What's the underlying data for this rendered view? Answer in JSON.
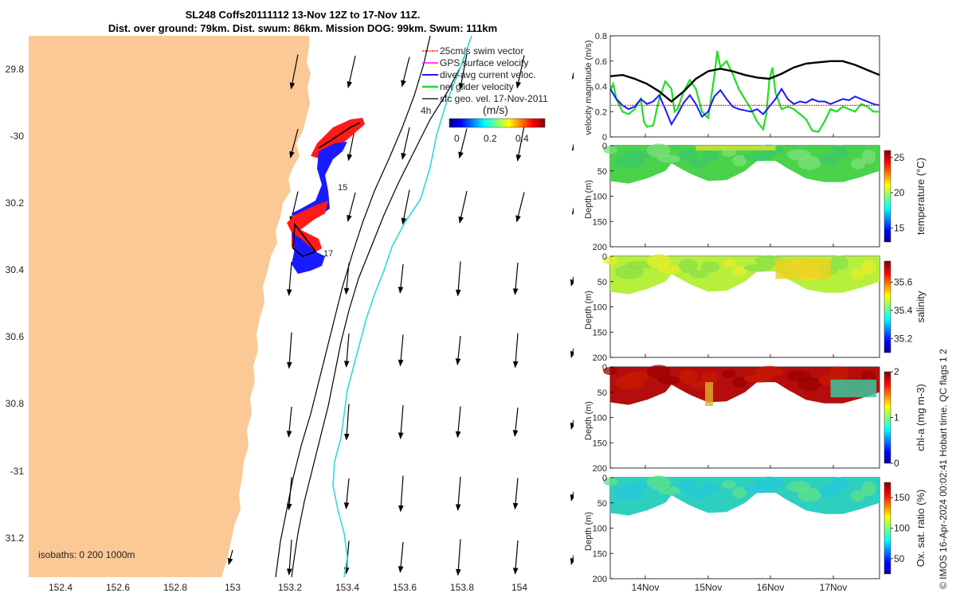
{
  "title": {
    "line1": "SL248 Coffs20111112 13-Nov 12Z to 17-Nov 11Z.",
    "line2": "Dist. over ground: 79km. Dist. swum: 86km. Mission DOG: 99km. Swum: 111km"
  },
  "credit": "© IMOS 16-Apr-2024 00:02:41 Hobart time. QC flags 1  2",
  "colors": {
    "land": "#fbc996",
    "swim_vector": "#ff2020",
    "gps_velocity": "#ff00ff",
    "dive_avg": "#1a1aff",
    "net_glider": "#22dd22",
    "sfc_geo": "#000000",
    "track_cyan": "#35d8d8"
  },
  "map": {
    "lon_ticks": [
      "152.4",
      "152.6",
      "152.8",
      "153",
      "153.2",
      "153.4",
      "153.6",
      "153.8",
      "154"
    ],
    "lat_ticks": [
      "29.8",
      "-30",
      "30.2",
      "30.4",
      "30.6",
      "30.8",
      "-31",
      "31.2"
    ],
    "isobath_note": "isobaths: 0   200  1000m",
    "day_labels": [
      "15",
      "17"
    ],
    "legend": [
      {
        "key": "swim",
        "label": "25cm/s swim vector"
      },
      {
        "key": "gps",
        "label": "GPS surface velocity"
      },
      {
        "key": "dive",
        "label": "dive-avg current veloc."
      },
      {
        "key": "net",
        "label": "net glider velocity"
      },
      {
        "key": "geo",
        "label": "sfc geo. vel. 17-Nov-2011"
      }
    ],
    "legend_scale_label": "4h",
    "colorbar": {
      "title": "(m/s)",
      "ticks": [
        "0",
        "0.2",
        "0.4"
      ],
      "range": [
        -0.1,
        0.5
      ]
    }
  },
  "chart_data": [
    {
      "type": "line",
      "ylabel": "velocity magnitude (m/s)",
      "ylim": [
        0,
        0.8
      ],
      "yticks": [
        "0",
        "0.2",
        "0.4",
        "0.6",
        "0.8"
      ],
      "x_range_days": [
        13.5,
        17.9
      ],
      "series": [
        {
          "key": "black",
          "values": [
            [
              13.5,
              0.48
            ],
            [
              13.7,
              0.49
            ],
            [
              13.9,
              0.46
            ],
            [
              14.1,
              0.42
            ],
            [
              14.3,
              0.36
            ],
            [
              14.5,
              0.28
            ],
            [
              14.7,
              0.36
            ],
            [
              14.9,
              0.46
            ],
            [
              15.1,
              0.52
            ],
            [
              15.3,
              0.54
            ],
            [
              15.5,
              0.52
            ],
            [
              15.7,
              0.49
            ],
            [
              15.9,
              0.47
            ],
            [
              16.1,
              0.46
            ],
            [
              16.3,
              0.5
            ],
            [
              16.5,
              0.55
            ],
            [
              16.7,
              0.58
            ],
            [
              16.9,
              0.59
            ],
            [
              17.1,
              0.6
            ],
            [
              17.3,
              0.6
            ],
            [
              17.5,
              0.57
            ],
            [
              17.7,
              0.53
            ],
            [
              17.9,
              0.49
            ]
          ]
        },
        {
          "key": "blue",
          "values": [
            [
              13.5,
              0.38
            ],
            [
              13.6,
              0.3
            ],
            [
              13.7,
              0.25
            ],
            [
              13.8,
              0.22
            ],
            [
              13.9,
              0.24
            ],
            [
              14.0,
              0.3
            ],
            [
              14.1,
              0.26
            ],
            [
              14.2,
              0.28
            ],
            [
              14.3,
              0.33
            ],
            [
              14.4,
              0.22
            ],
            [
              14.5,
              0.1
            ],
            [
              14.6,
              0.18
            ],
            [
              14.7,
              0.27
            ],
            [
              14.8,
              0.33
            ],
            [
              14.9,
              0.26
            ],
            [
              15.0,
              0.16
            ],
            [
              15.1,
              0.2
            ],
            [
              15.2,
              0.32
            ],
            [
              15.3,
              0.37
            ],
            [
              15.4,
              0.3
            ],
            [
              15.5,
              0.24
            ],
            [
              15.6,
              0.22
            ],
            [
              15.7,
              0.21
            ],
            [
              15.8,
              0.2
            ],
            [
              15.9,
              0.22
            ],
            [
              16.0,
              0.18
            ],
            [
              16.1,
              0.24
            ],
            [
              16.2,
              0.3
            ],
            [
              16.3,
              0.38
            ],
            [
              16.4,
              0.3
            ],
            [
              16.5,
              0.26
            ],
            [
              16.6,
              0.28
            ],
            [
              16.7,
              0.27
            ],
            [
              16.8,
              0.3
            ],
            [
              16.9,
              0.28
            ],
            [
              17.0,
              0.28
            ],
            [
              17.1,
              0.26
            ],
            [
              17.2,
              0.28
            ],
            [
              17.3,
              0.3
            ],
            [
              17.4,
              0.29
            ],
            [
              17.5,
              0.32
            ],
            [
              17.6,
              0.3
            ],
            [
              17.7,
              0.28
            ],
            [
              17.8,
              0.26
            ],
            [
              17.9,
              0.25
            ]
          ]
        },
        {
          "key": "green",
          "values": [
            [
              13.5,
              0.36
            ],
            [
              13.55,
              0.42
            ],
            [
              13.6,
              0.3
            ],
            [
              13.7,
              0.2
            ],
            [
              13.8,
              0.18
            ],
            [
              13.9,
              0.22
            ],
            [
              14.0,
              0.3
            ],
            [
              14.05,
              0.12
            ],
            [
              14.1,
              0.08
            ],
            [
              14.2,
              0.09
            ],
            [
              14.3,
              0.3
            ],
            [
              14.4,
              0.44
            ],
            [
              14.5,
              0.38
            ],
            [
              14.55,
              0.2
            ],
            [
              14.6,
              0.22
            ],
            [
              14.7,
              0.36
            ],
            [
              14.8,
              0.45
            ],
            [
              14.9,
              0.38
            ],
            [
              15.0,
              0.2
            ],
            [
              15.1,
              0.15
            ],
            [
              15.2,
              0.48
            ],
            [
              15.25,
              0.68
            ],
            [
              15.3,
              0.55
            ],
            [
              15.4,
              0.6
            ],
            [
              15.5,
              0.5
            ],
            [
              15.6,
              0.38
            ],
            [
              15.7,
              0.3
            ],
            [
              15.8,
              0.22
            ],
            [
              15.9,
              0.12
            ],
            [
              16.0,
              0.06
            ],
            [
              16.05,
              0.18
            ],
            [
              16.1,
              0.45
            ],
            [
              16.15,
              0.55
            ],
            [
              16.2,
              0.35
            ],
            [
              16.3,
              0.22
            ],
            [
              16.4,
              0.24
            ],
            [
              16.5,
              0.22
            ],
            [
              16.6,
              0.18
            ],
            [
              16.7,
              0.14
            ],
            [
              16.8,
              0.05
            ],
            [
              16.9,
              0.04
            ],
            [
              17.0,
              0.12
            ],
            [
              17.1,
              0.22
            ],
            [
              17.2,
              0.2
            ],
            [
              17.3,
              0.24
            ],
            [
              17.4,
              0.22
            ],
            [
              17.5,
              0.2
            ],
            [
              17.6,
              0.26
            ],
            [
              17.7,
              0.24
            ],
            [
              17.8,
              0.2
            ],
            [
              17.9,
              0.2
            ]
          ]
        },
        {
          "key": "red",
          "values": [
            [
              13.5,
              0.25
            ],
            [
              17.9,
              0.25
            ]
          ]
        }
      ]
    },
    {
      "type": "heatmap",
      "ylabel": "Depth (m)",
      "clabel": "temperature (°C)",
      "cticks": [
        "15",
        "20",
        "25"
      ],
      "crange": [
        13,
        26
      ],
      "yticks": [
        "0",
        "50",
        "100",
        "150",
        "200"
      ]
    },
    {
      "type": "heatmap",
      "ylabel": "Depth (m)",
      "clabel": "salinity",
      "cticks": [
        "35.2",
        "35.4",
        "35.6"
      ],
      "crange": [
        35.1,
        35.75
      ],
      "yticks": [
        "0",
        "50",
        "100",
        "150",
        "200"
      ]
    },
    {
      "type": "heatmap",
      "ylabel": "Depth (m)",
      "clabel": "chl-a (mg m-3)",
      "cticks": [
        "0",
        "1",
        "2"
      ],
      "crange": [
        0,
        2
      ],
      "yticks": [
        "0",
        "50",
        "100",
        "150",
        "200"
      ]
    },
    {
      "type": "heatmap",
      "ylabel": "Depth (m)",
      "clabel": "Ox. sat. ratio (%)",
      "cticks": [
        "50",
        "100",
        "150"
      ],
      "crange": [
        25,
        175
      ],
      "yticks": [
        "0",
        "50",
        "100",
        "150",
        "200"
      ]
    }
  ],
  "time_axis": {
    "labels": [
      "14Nov",
      "15Nov",
      "16Nov",
      "17Nov"
    ]
  }
}
